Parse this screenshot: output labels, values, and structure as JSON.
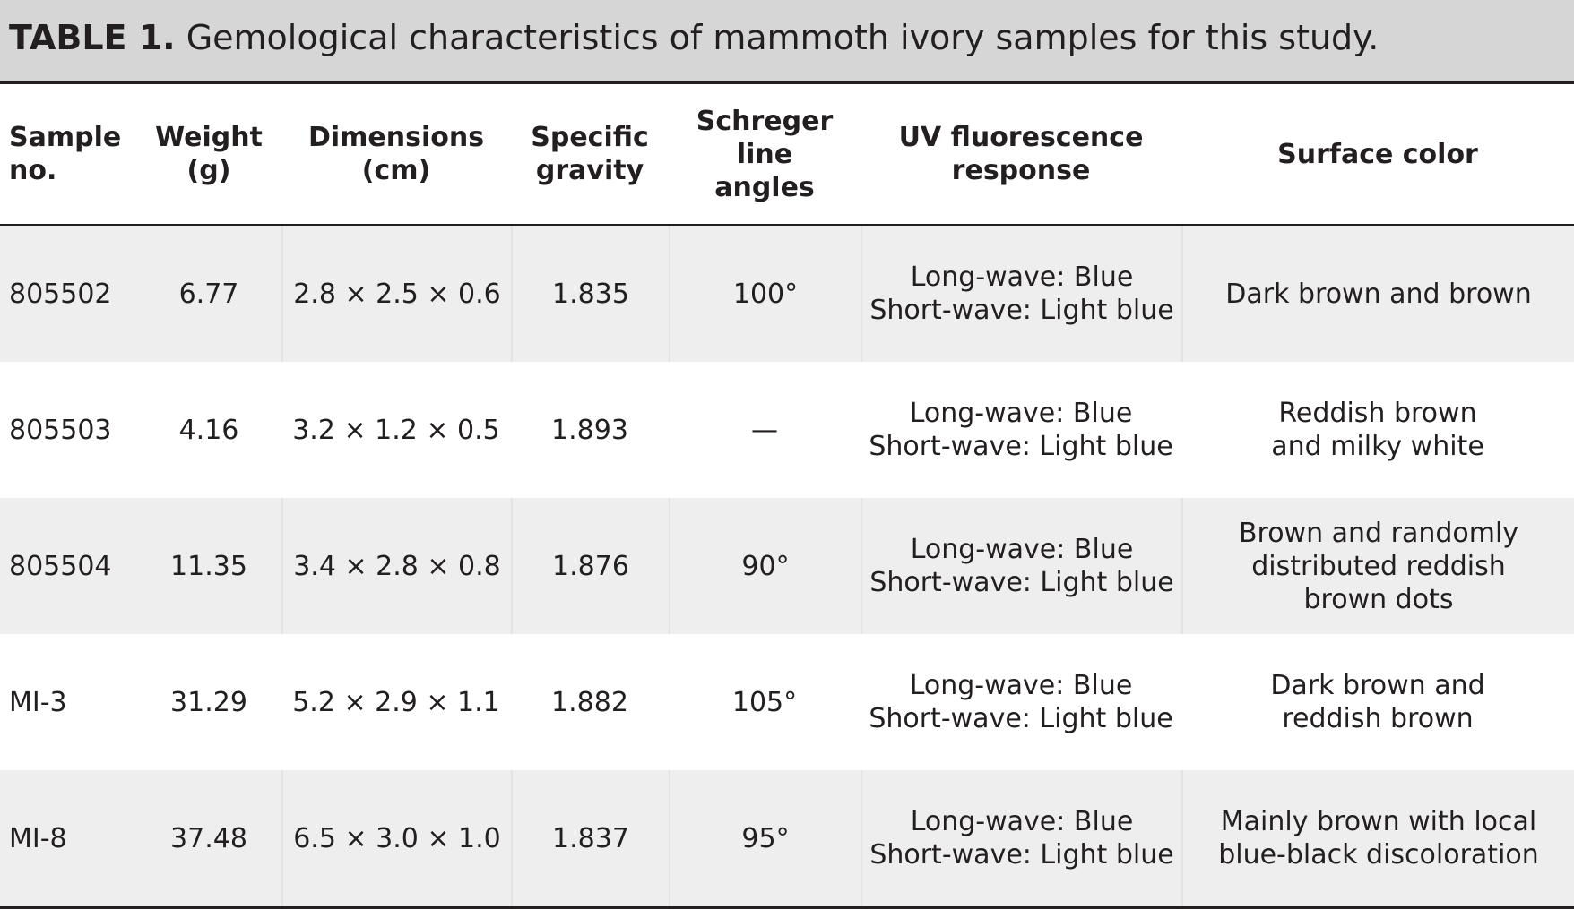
{
  "caption": {
    "label": "TABLE 1.",
    "text": "Gemological characteristics of mammoth ivory samples for this study."
  },
  "headers": [
    [
      "Sample",
      "no."
    ],
    [
      "Weight",
      "(g)"
    ],
    [
      "Dimensions",
      "(cm)"
    ],
    [
      "Specific",
      "gravity"
    ],
    [
      "Schreger line",
      "angles"
    ],
    [
      "UV fluorescence",
      "response"
    ],
    [
      "Surface color"
    ]
  ],
  "rows": [
    {
      "sample": "805502",
      "weight": "6.77",
      "dimensions": "2.8 × 2.5 × 0.6",
      "sg": "1.835",
      "schreger": "100°",
      "uv": [
        "Long-wave: Blue",
        "Short-wave: Light blue"
      ],
      "color": [
        "Dark brown and brown"
      ]
    },
    {
      "sample": "805503",
      "weight": "4.16",
      "dimensions": "3.2 × 1.2 × 0.5",
      "sg": "1.893",
      "schreger": "—",
      "uv": [
        "Long-wave: Blue",
        "Short-wave: Light blue"
      ],
      "color": [
        "Reddish brown",
        "and milky white"
      ]
    },
    {
      "sample": "805504",
      "weight": "11.35",
      "dimensions": "3.4 × 2.8 × 0.8",
      "sg": "1.876",
      "schreger": "90°",
      "uv": [
        "Long-wave: Blue",
        "Short-wave: Light blue"
      ],
      "color": [
        "Brown and randomly",
        "distributed reddish",
        "brown dots"
      ]
    },
    {
      "sample": "MI-3",
      "weight": "31.29",
      "dimensions": "5.2 × 2.9 × 1.1",
      "sg": "1.882",
      "schreger": "105°",
      "uv": [
        "Long-wave: Blue",
        "Short-wave: Light blue"
      ],
      "color": [
        "Dark brown and",
        "reddish brown"
      ]
    },
    {
      "sample": "MI-8",
      "weight": "37.48",
      "dimensions": "6.5 × 3.0 × 1.0",
      "sg": "1.837",
      "schreger": "95°",
      "uv": [
        "Long-wave: Blue",
        "Short-wave: Light blue"
      ],
      "color": [
        "Mainly brown with local",
        "blue-black discoloration"
      ]
    }
  ]
}
